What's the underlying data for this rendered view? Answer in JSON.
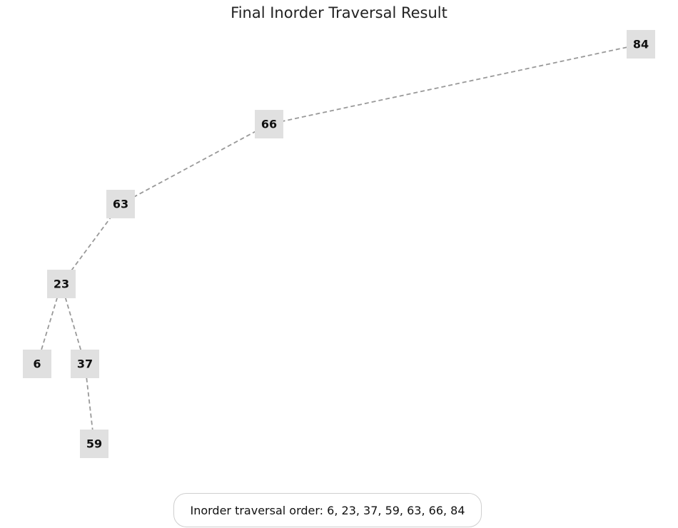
{
  "title": "Final Inorder Traversal Result",
  "caption": "Inorder traversal order: 6, 23, 37, 59, 63, 66, 84",
  "colors": {
    "node_fill": "#e0e0e0",
    "edge": "#999999"
  },
  "tree": {
    "nodes": [
      {
        "id": "84",
        "label": "84"
      },
      {
        "id": "66",
        "label": "66"
      },
      {
        "id": "63",
        "label": "63"
      },
      {
        "id": "23",
        "label": "23"
      },
      {
        "id": "6",
        "label": "6"
      },
      {
        "id": "37",
        "label": "37"
      },
      {
        "id": "59",
        "label": "59"
      }
    ],
    "edges": [
      {
        "from": "84",
        "to": "66"
      },
      {
        "from": "66",
        "to": "63"
      },
      {
        "from": "63",
        "to": "23"
      },
      {
        "from": "23",
        "to": "6"
      },
      {
        "from": "23",
        "to": "37"
      },
      {
        "from": "37",
        "to": "59"
      }
    ]
  }
}
